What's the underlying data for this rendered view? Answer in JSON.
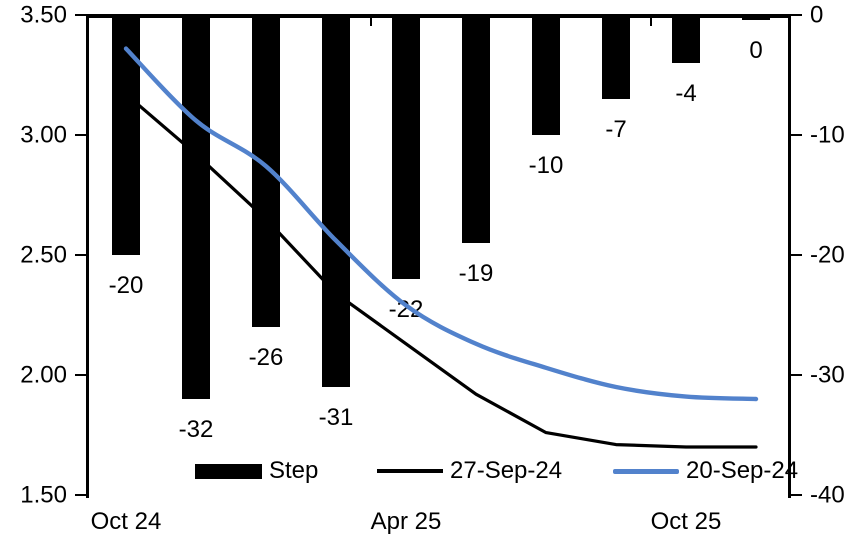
{
  "chart_data": {
    "type": "combo-bar-line",
    "title": "",
    "n_categories": 10,
    "x_axis_labels": [
      {
        "index": 0,
        "label": "Oct 24"
      },
      {
        "index": 4,
        "label": "Apr 25"
      },
      {
        "index": 8,
        "label": "Oct 25"
      }
    ],
    "left_axis": {
      "tick_labels": [
        "3.50",
        "3.00",
        "2.50",
        "2.00",
        "1.50"
      ],
      "max": 3.5,
      "min": 1.5,
      "side": "left"
    },
    "right_axis": {
      "tick_labels": [
        "0",
        "-10",
        "-20",
        "-30",
        "-40"
      ],
      "max": 0,
      "min": -40,
      "side": "right"
    },
    "grid": "off",
    "legend_position": "bottom",
    "bars": {
      "name": "Step",
      "axis": "right",
      "color": "#000000",
      "values": [
        -20,
        -32,
        -26,
        -31,
        -22,
        -19,
        -10,
        -7,
        -4,
        0
      ],
      "data_labels": [
        "-20",
        "-32",
        "-26",
        "-31",
        "-22",
        "-19",
        "-10",
        "-7",
        "-4",
        "0"
      ]
    },
    "lines": [
      {
        "name": "27-Sep-24",
        "axis": "left",
        "color": "#000000",
        "smooth": false,
        "values": [
          3.17,
          2.92,
          2.65,
          2.34,
          2.13,
          1.92,
          1.76,
          1.71,
          1.7,
          1.7
        ]
      },
      {
        "name": "20-Sep-24",
        "axis": "left",
        "color": "#5282cc",
        "smooth": true,
        "values": [
          3.36,
          3.06,
          2.87,
          2.56,
          2.29,
          2.13,
          2.03,
          1.95,
          1.91,
          1.9
        ]
      }
    ]
  },
  "legend": {
    "step_label": "Step",
    "line1_label": "27-Sep-24",
    "line2_label": "20-Sep-24"
  }
}
